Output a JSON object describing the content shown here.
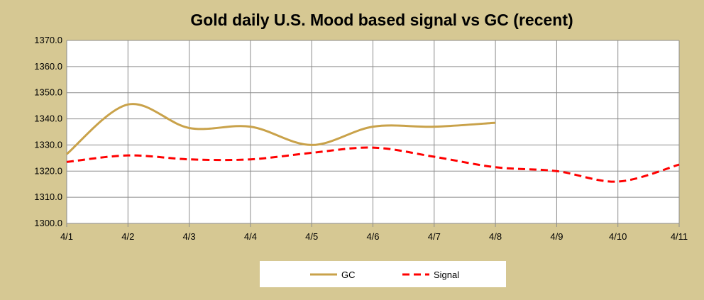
{
  "chart_data": {
    "type": "line",
    "title": "Gold daily U.S. Mood based signal vs GC (recent)",
    "xlabel": "",
    "ylabel": "",
    "categories": [
      "4/1",
      "4/2",
      "4/3",
      "4/4",
      "4/5",
      "4/6",
      "4/7",
      "4/8",
      "4/9",
      "4/10",
      "4/11"
    ],
    "ylim": [
      1300,
      1370
    ],
    "yticks": [
      "1300.0",
      "1310.0",
      "1320.0",
      "1330.0",
      "1340.0",
      "1350.0",
      "1360.0",
      "1370.0"
    ],
    "grid": true,
    "legend_position": "bottom",
    "series": [
      {
        "name": "GC",
        "color": "#c9a24a",
        "dash": "solid",
        "values": [
          1326.5,
          1345.5,
          1336.5,
          1337.0,
          1330.0,
          1337.0,
          1337.0,
          1338.5,
          null,
          null,
          null
        ]
      },
      {
        "name": "Signal",
        "color": "#ff0000",
        "dash": "dashed",
        "values": [
          1323.5,
          1326.0,
          1324.5,
          1324.5,
          1327.0,
          1329.0,
          1325.5,
          1321.5,
          1320.0,
          1316.0,
          1322.5
        ]
      }
    ]
  }
}
